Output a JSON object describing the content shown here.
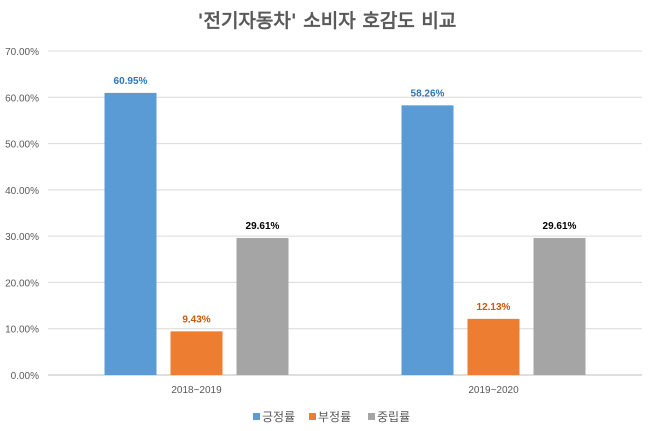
{
  "chart_data": {
    "type": "bar",
    "title": "'전기자동차' 소비자 호감도 비교",
    "xlabel": "",
    "ylabel": "",
    "ylim": [
      0,
      70
    ],
    "yticks": [
      "0.00%",
      "10.00%",
      "20.00%",
      "30.00%",
      "40.00%",
      "50.00%",
      "60.00%",
      "70.00%"
    ],
    "grid": true,
    "legend_position": "bottom",
    "categories": [
      "2018~2019",
      "2019~2020"
    ],
    "series": [
      {
        "name": "긍정률",
        "color": "#5b9bd5",
        "label_color": "#2e75b6",
        "values": [
          60.95,
          58.26
        ],
        "labels": [
          "60.95%",
          "58.26%"
        ]
      },
      {
        "name": "부정률",
        "color": "#ed7d31",
        "label_color": "#c55a11",
        "values": [
          9.43,
          12.13
        ],
        "labels": [
          "9.43%",
          "12.13%"
        ]
      },
      {
        "name": "중립률",
        "color": "#a5a5a5",
        "label_color": "#000000",
        "values": [
          29.61,
          29.61
        ],
        "labels": [
          "29.61%",
          "29.61%"
        ]
      }
    ]
  }
}
